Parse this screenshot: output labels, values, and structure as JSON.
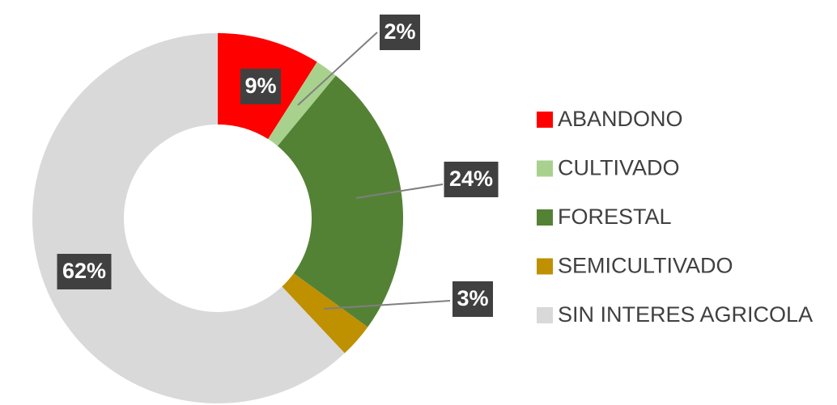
{
  "chart_data": {
    "type": "donut",
    "categories": [
      "ABANDONO",
      "CULTIVADO",
      "FORESTAL",
      "SEMICULTIVADO",
      "SIN INTERES AGRICOLA"
    ],
    "values": [
      9,
      2,
      24,
      3,
      62
    ],
    "value_labels": [
      "9%",
      "2%",
      "24%",
      "3%",
      "62%"
    ],
    "colors": [
      "#ff0000",
      "#a9d18e",
      "#548235",
      "#bf9000",
      "#d9d9d9"
    ],
    "legend": "right"
  }
}
